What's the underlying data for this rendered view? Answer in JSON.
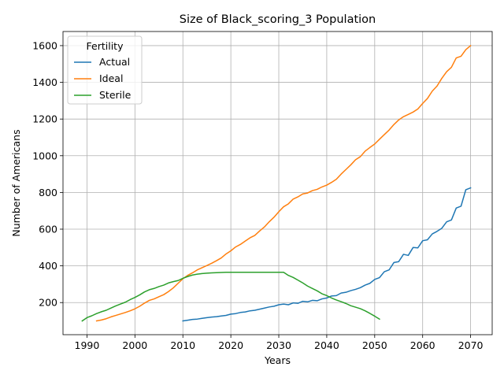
{
  "chart_data": {
    "type": "line",
    "title": "Size of Black_scoring_3 Population",
    "xlabel": "Years",
    "ylabel": "Number of Americans",
    "xlim": [
      1985,
      2074.5
    ],
    "ylim": [
      25,
      1677
    ],
    "xticks": [
      "1990",
      "2000",
      "2010",
      "2020",
      "2030",
      "2040",
      "2050",
      "2060",
      "2070"
    ],
    "yticks": [
      "200",
      "400",
      "600",
      "800",
      "1000",
      "1200",
      "1400",
      "1600"
    ],
    "grid": true,
    "legend": {
      "title": "Fertility",
      "position": "top-left"
    },
    "series": [
      {
        "name": "Actual",
        "color": "#1f77b4",
        "x": [
          2010,
          2011,
          2012,
          2013,
          2014,
          2015,
          2016,
          2017,
          2018,
          2019,
          2020,
          2021,
          2022,
          2023,
          2024,
          2025,
          2026,
          2027,
          2028,
          2029,
          2030,
          2031,
          2032,
          2033,
          2034,
          2035,
          2036,
          2037,
          2038,
          2039,
          2040,
          2041,
          2042,
          2043,
          2044,
          2045,
          2046,
          2047,
          2048,
          2049,
          2050,
          2051,
          2052,
          2053,
          2054,
          2055,
          2056,
          2057,
          2058,
          2059,
          2060,
          2061,
          2062,
          2063,
          2064,
          2065,
          2066,
          2067,
          2068,
          2069,
          2070
        ],
        "y": [
          100,
          104,
          108,
          110,
          114,
          118,
          121,
          123,
          127,
          130,
          137,
          140,
          146,
          149,
          155,
          158,
          164,
          170,
          176,
          180,
          188,
          192,
          188,
          198,
          196,
          207,
          204,
          212,
          210,
          220,
          225,
          236,
          238,
          252,
          256,
          265,
          272,
          281,
          295,
          305,
          326,
          336,
          368,
          378,
          418,
          423,
          463,
          457,
          500,
          498,
          537,
          542,
          574,
          588,
          605,
          640,
          650,
          715,
          725,
          815,
          825
        ]
      },
      {
        "name": "Ideal",
        "color": "#ff7f0e",
        "x": [
          1992,
          1993,
          1994,
          1995,
          1996,
          1997,
          1998,
          1999,
          2000,
          2001,
          2002,
          2003,
          2004,
          2005,
          2006,
          2007,
          2008,
          2009,
          2010,
          2011,
          2012,
          2013,
          2014,
          2015,
          2016,
          2017,
          2018,
          2019,
          2020,
          2021,
          2022,
          2023,
          2024,
          2025,
          2026,
          2027,
          2028,
          2029,
          2030,
          2031,
          2032,
          2033,
          2034,
          2035,
          2036,
          2037,
          2038,
          2039,
          2040,
          2041,
          2042,
          2043,
          2044,
          2045,
          2046,
          2047,
          2048,
          2049,
          2050,
          2051,
          2052,
          2053,
          2054,
          2055,
          2056,
          2057,
          2058,
          2059,
          2060,
          2061,
          2062,
          2063,
          2064,
          2065,
          2066,
          2067,
          2068,
          2069,
          2070
        ],
        "y": [
          100,
          105,
          112,
          122,
          130,
          138,
          146,
          155,
          166,
          180,
          197,
          212,
          220,
          232,
          243,
          260,
          280,
          305,
          330,
          348,
          362,
          378,
          390,
          402,
          414,
          428,
          443,
          465,
          482,
          503,
          517,
          535,
          553,
          566,
          590,
          612,
          640,
          665,
          695,
          722,
          738,
          764,
          776,
          792,
          797,
          810,
          817,
          830,
          840,
          855,
          872,
          900,
          925,
          950,
          978,
          995,
          1025,
          1045,
          1064,
          1090,
          1115,
          1140,
          1170,
          1195,
          1213,
          1225,
          1238,
          1255,
          1285,
          1312,
          1352,
          1380,
          1422,
          1458,
          1482,
          1533,
          1542,
          1578,
          1600
        ]
      },
      {
        "name": "Sterile",
        "color": "#2ca02c",
        "x": [
          1989,
          1990,
          1991,
          1992,
          1993,
          1994,
          1995,
          1996,
          1997,
          1998,
          1999,
          2000,
          2001,
          2002,
          2003,
          2004,
          2005,
          2006,
          2007,
          2008,
          2009,
          2010,
          2011,
          2012,
          2013,
          2014,
          2015,
          2016,
          2017,
          2018,
          2019,
          2020,
          2021,
          2022,
          2023,
          2024,
          2025,
          2026,
          2027,
          2028,
          2029,
          2030,
          2031,
          2032,
          2033,
          2034,
          2035,
          2036,
          2037,
          2038,
          2039,
          2040,
          2041,
          2042,
          2043,
          2044,
          2045,
          2046,
          2047,
          2048,
          2049,
          2050,
          2051
        ],
        "y": [
          100,
          118,
          128,
          140,
          150,
          158,
          170,
          182,
          192,
          202,
          216,
          228,
          242,
          258,
          270,
          277,
          287,
          295,
          307,
          314,
          320,
          332,
          342,
          350,
          355,
          358,
          360,
          362,
          363,
          364,
          365,
          365,
          365,
          365,
          365,
          365,
          365,
          365,
          365,
          365,
          365,
          365,
          365,
          348,
          337,
          322,
          307,
          290,
          277,
          264,
          248,
          238,
          225,
          214,
          205,
          195,
          183,
          175,
          167,
          155,
          141,
          126,
          110
        ]
      }
    ]
  }
}
